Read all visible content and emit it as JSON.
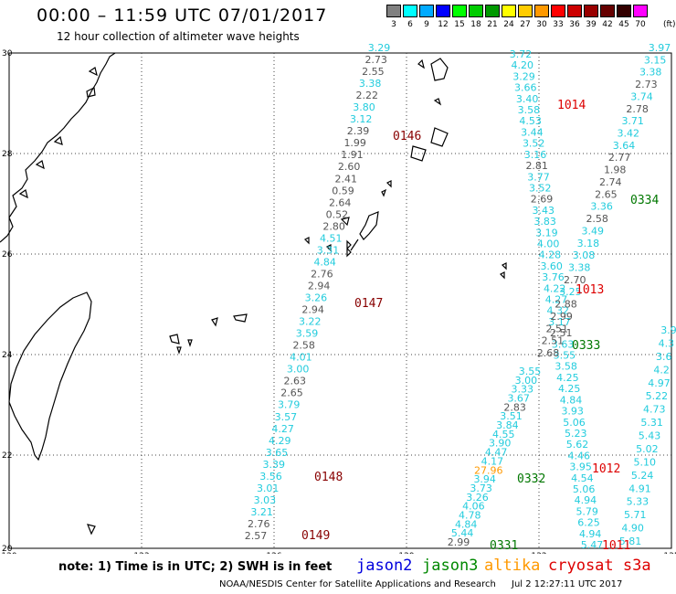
{
  "title": "00:00 – 11:59 UTC 07/01/2017",
  "subtitle": "12 hour collection of altimeter wave heights",
  "color_scale": {
    "labels": [
      "3",
      "6",
      "9",
      "12",
      "15",
      "18",
      "21",
      "24",
      "27",
      "30",
      "33",
      "36",
      "39",
      "42",
      "45",
      "70"
    ],
    "unit": "(ft)",
    "colors": [
      "#808080",
      "#00ffff",
      "#00aaff",
      "#0000ff",
      "#00ff00",
      "#00cc00",
      "#009900",
      "#ffff00",
      "#ffcc00",
      "#ff9900",
      "#ff0000",
      "#cc0000",
      "#990000",
      "#660000",
      "#330000",
      "#ff00ff"
    ]
  },
  "map": {
    "lon_labels": [
      "120",
      "123",
      "126",
      "129",
      "132",
      "135"
    ],
    "lat_labels": [
      "30",
      "28",
      "26",
      "24",
      "22",
      "20"
    ],
    "orbits": [
      {
        "label": "0146",
        "color": "#880000"
      },
      {
        "label": "0147",
        "color": "#880000"
      },
      {
        "label": "0148",
        "color": "#880000"
      },
      {
        "label": "0149",
        "color": "#880000"
      },
      {
        "label": "1014",
        "color": "#dd0000"
      },
      {
        "label": "1013",
        "color": "#dd0000"
      },
      {
        "label": "1012",
        "color": "#dd0000"
      },
      {
        "label": "1011",
        "color": "#dd0000"
      },
      {
        "label": "0334",
        "color": "#007700"
      },
      {
        "label": "0333",
        "color": "#007700"
      },
      {
        "label": "0332",
        "color": "#007700"
      },
      {
        "label": "0331",
        "color": "#007700"
      }
    ],
    "tracks": [
      {
        "name": "A",
        "values": [
          "3.29",
          "2.73",
          "2.55",
          "3.38",
          "2.22",
          "3.80",
          "3.12",
          "2.39",
          "1.99",
          "1.91",
          "2.60",
          "2.41",
          "0.59",
          "2.64",
          "0.52",
          "2.80",
          "4.51",
          "3.31",
          "4.84",
          "2.76",
          "2.94",
          "3.26",
          "2.94",
          "3.22",
          "3.59",
          "2.58",
          "4.01",
          "3.00",
          "2.63",
          "2.65",
          "3.79",
          "3.57",
          "4.27",
          "4.29",
          "3.65",
          "3.39",
          "3.56",
          "3.01",
          "3.03",
          "3.21",
          "2.76",
          "2.57"
        ]
      },
      {
        "name": "B",
        "values": [
          "3.72",
          "4.20",
          "3.29",
          "3.66",
          "3.40",
          "3.58",
          "4.53",
          "3.44",
          "3.52",
          "3.16",
          "2.81",
          "3.77",
          "3.52",
          "2.69",
          "3.43",
          "3.83",
          "3.19",
          "4.00",
          "4.28",
          "3.60",
          "3.76",
          "4.22",
          "4.27",
          "4.32",
          "3.17",
          "2.51",
          "3.63",
          "3.55",
          "3.58",
          "4.25",
          "4.25",
          "4.84",
          "3.93",
          "5.06",
          "5.23",
          "5.62",
          "4.46",
          "3.95",
          "4.54",
          "5.06",
          "4.94",
          "5.79",
          "6.25",
          "4.94",
          "5.47"
        ]
      },
      {
        "name": "C",
        "values": [
          "3.97",
          "3.15",
          "3.38",
          "2.73",
          "3.74",
          "2.78",
          "3.71",
          "3.42",
          "3.64",
          "2.77",
          "1.98",
          "2.74",
          "2.65",
          "3.36",
          "2.58",
          "3.49",
          "3.18",
          "3.08",
          "3.38",
          "2.70",
          "3.25",
          "2.88",
          "2.99",
          "2.51",
          "2.51",
          "2.68"
        ]
      },
      {
        "name": "D",
        "values": [
          "3.55",
          "3.00",
          "3.33",
          "3.67",
          "2.83",
          "3.51",
          "3.84",
          "4.55",
          "3.90",
          "4.47",
          "4.17",
          "27.96",
          "3.94",
          "3.73",
          "3.26",
          "4.06",
          "4.78",
          "4.84",
          "5.44",
          "2.99"
        ]
      },
      {
        "name": "E",
        "values": [
          "3.9",
          "4.3",
          "3.6",
          "4.2",
          "4.97",
          "5.22",
          "4.73",
          "5.31",
          "5.43",
          "5.02",
          "5.10",
          "5.24",
          "4.91",
          "5.33",
          "5.71",
          "4.90",
          "5.81"
        ]
      }
    ]
  },
  "footer": {
    "note": "note: 1) Time is in UTC; 2) SWH is in feet",
    "satellites": [
      {
        "name": "jason2",
        "color": "#0000dd"
      },
      {
        "name": "jason3",
        "color": "#008800"
      },
      {
        "name": "altika",
        "color": "#ff9900"
      },
      {
        "name": "cryosat s3a",
        "color": "#dd0000"
      }
    ],
    "credit": "NOAA/NESDIS Center for Satellite Applications and Research",
    "timestamp": "Jul  2 12:27:11 UTC 2017"
  }
}
